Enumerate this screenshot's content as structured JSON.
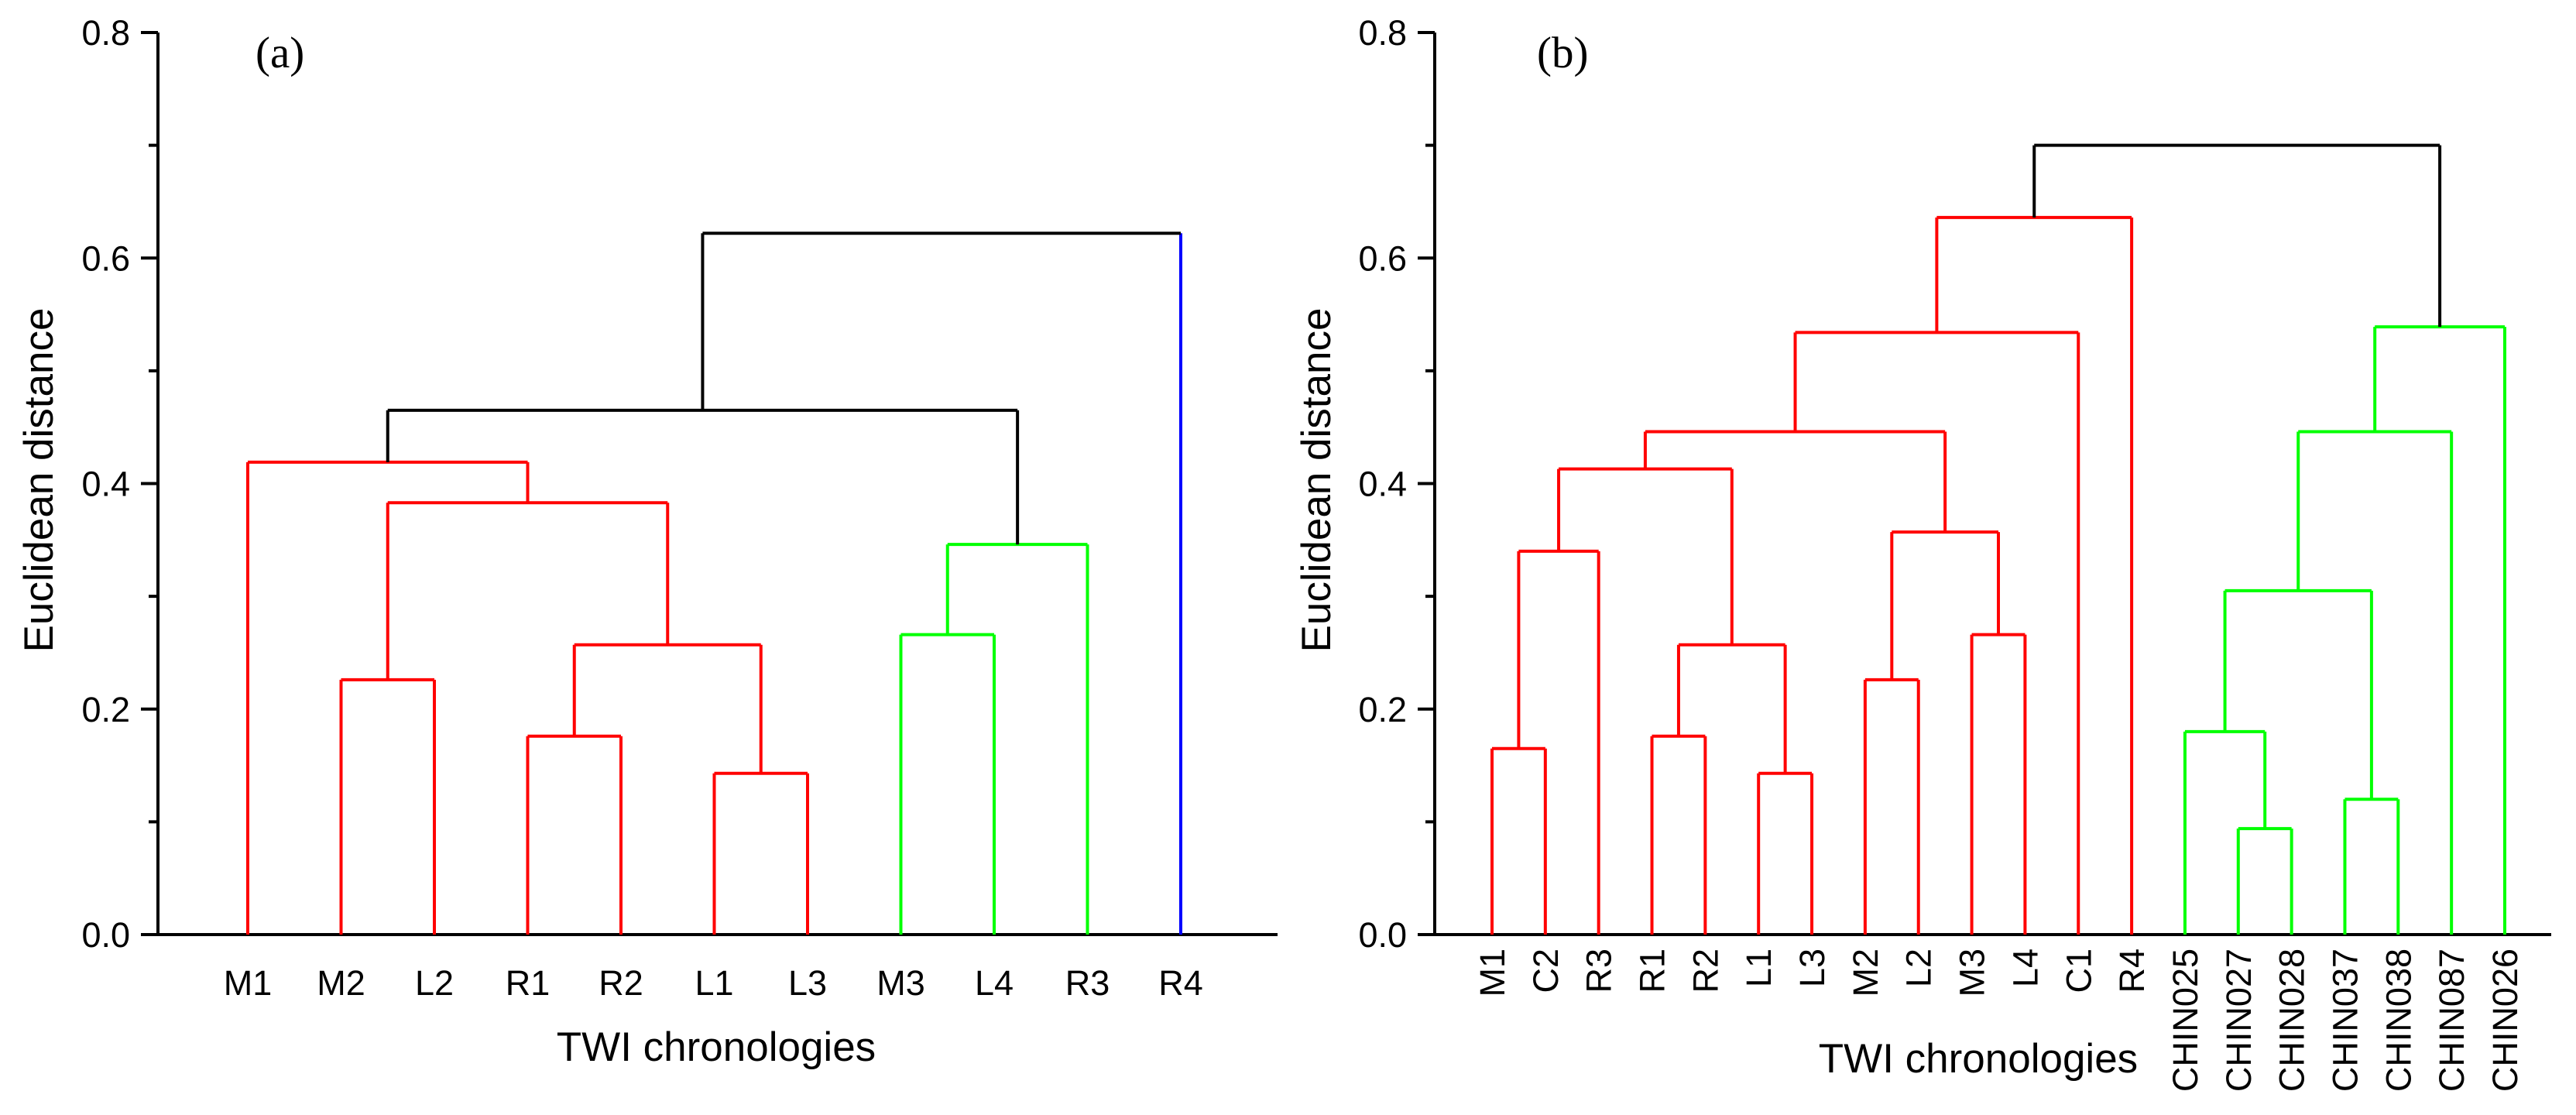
{
  "chart_data": [
    {
      "type": "dendrogram",
      "panel": "(a)",
      "xlabel": "TWI chronologies",
      "ylabel": "Euclidean distance",
      "ylim": [
        0,
        0.8
      ],
      "yticks": [
        "0.0",
        "0.2",
        "0.4",
        "0.6",
        "0.8"
      ],
      "leaves": [
        "M1",
        "M2",
        "L2",
        "R1",
        "R2",
        "L1",
        "L3",
        "M3",
        "L4",
        "R3",
        "R4"
      ],
      "merges": [
        {
          "id": "a1",
          "left": "L1",
          "right": "L3",
          "height": 0.143,
          "color": "#ff0000"
        },
        {
          "id": "a2",
          "left": "R1",
          "right": "R2",
          "height": 0.176,
          "color": "#ff0000"
        },
        {
          "id": "a3",
          "left": "M2",
          "right": "L2",
          "height": 0.226,
          "color": "#ff0000"
        },
        {
          "id": "a4",
          "left": "a2",
          "right": "a1",
          "height": 0.257,
          "color": "#ff0000"
        },
        {
          "id": "a5",
          "left": "M3",
          "right": "L4",
          "height": 0.266,
          "color": "#00ff00"
        },
        {
          "id": "a6",
          "left": "a5",
          "right": "R3",
          "height": 0.346,
          "color": "#00ff00"
        },
        {
          "id": "a7",
          "left": "a3",
          "right": "a4",
          "height": 0.383,
          "color": "#ff0000"
        },
        {
          "id": "a8",
          "left": "M1",
          "right": "a7",
          "height": 0.419,
          "color": "#ff0000"
        },
        {
          "id": "a9",
          "left": "a8",
          "right": "a6",
          "height": 0.465,
          "color": "#000000"
        },
        {
          "id": "a10",
          "left": "a9",
          "right": "R4",
          "height": 0.622,
          "color": "#000000",
          "right_color": "#0000ff"
        }
      ]
    },
    {
      "type": "dendrogram",
      "panel": "(b)",
      "xlabel": "TWI chronologies",
      "ylabel": "Euclidean distance",
      "ylim": [
        0,
        0.8
      ],
      "yticks": [
        "0.0",
        "0.2",
        "0.4",
        "0.6",
        "0.8"
      ],
      "leaves": [
        "M1",
        "C2",
        "R3",
        "R1",
        "R2",
        "L1",
        "L3",
        "M2",
        "L2",
        "M3",
        "L4",
        "C1",
        "R4",
        "CHIN025",
        "CHIN027",
        "CHIN028",
        "CHIN037",
        "CHIN038",
        "CHIN087",
        "CHIN026"
      ],
      "merges": [
        {
          "id": "b1",
          "left": "CHIN027",
          "right": "CHIN028",
          "height": 0.094,
          "color": "#00ff00"
        },
        {
          "id": "b2",
          "left": "CHIN037",
          "right": "CHIN038",
          "height": 0.12,
          "color": "#00ff00"
        },
        {
          "id": "b3",
          "left": "L1",
          "right": "L3",
          "height": 0.143,
          "color": "#ff0000"
        },
        {
          "id": "b4",
          "left": "M1",
          "right": "C2",
          "height": 0.165,
          "color": "#ff0000"
        },
        {
          "id": "b5",
          "left": "R1",
          "right": "R2",
          "height": 0.176,
          "color": "#ff0000"
        },
        {
          "id": "b6",
          "left": "CHIN025",
          "right": "b1",
          "height": 0.18,
          "color": "#00ff00"
        },
        {
          "id": "b7",
          "left": "M2",
          "right": "L2",
          "height": 0.226,
          "color": "#ff0000"
        },
        {
          "id": "b8",
          "left": "b5",
          "right": "b3",
          "height": 0.257,
          "color": "#ff0000"
        },
        {
          "id": "b9",
          "left": "M3",
          "right": "L4",
          "height": 0.266,
          "color": "#ff0000"
        },
        {
          "id": "b10",
          "left": "b6",
          "right": "b2",
          "height": 0.305,
          "color": "#00ff00"
        },
        {
          "id": "b11",
          "left": "b4",
          "right": "R3",
          "height": 0.34,
          "color": "#ff0000"
        },
        {
          "id": "b12",
          "left": "b7",
          "right": "b9",
          "height": 0.357,
          "color": "#ff0000"
        },
        {
          "id": "b13",
          "left": "b11",
          "right": "b8",
          "height": 0.413,
          "color": "#ff0000"
        },
        {
          "id": "b14",
          "left": "b10",
          "right": "CHIN087",
          "height": 0.446,
          "color": "#00ff00"
        },
        {
          "id": "b15",
          "left": "b13",
          "right": "b12",
          "height": 0.446,
          "color": "#ff0000"
        },
        {
          "id": "b16",
          "left": "b15",
          "right": "C1",
          "height": 0.534,
          "color": "#ff0000"
        },
        {
          "id": "b17",
          "left": "b14",
          "right": "CHIN026",
          "height": 0.539,
          "color": "#00ff00"
        },
        {
          "id": "b18",
          "left": "b16",
          "right": "R4",
          "height": 0.636,
          "color": "#ff0000"
        },
        {
          "id": "b19",
          "left": "b18",
          "right": "b17",
          "height": 0.7,
          "color": "#000000"
        }
      ]
    }
  ]
}
